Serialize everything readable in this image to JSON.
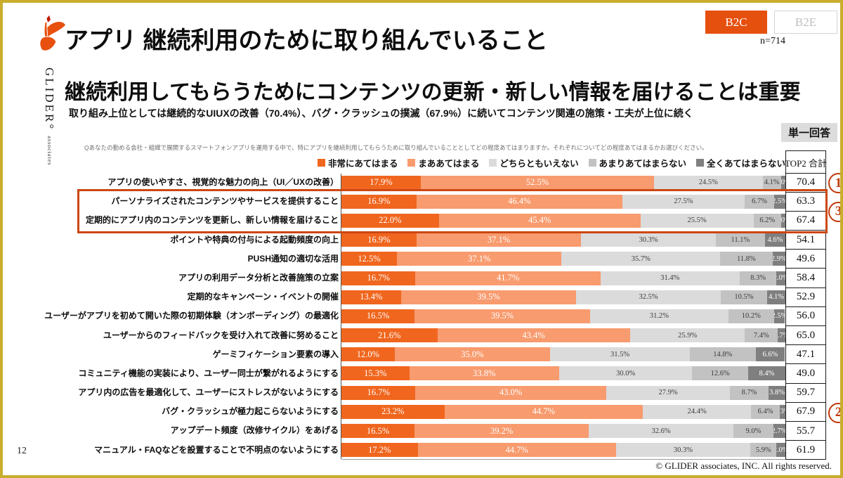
{
  "page": {
    "number": "12",
    "copyright": "© GLIDER associates, INC. All rights reserved."
  },
  "brand": {
    "name": "GLIDER°",
    "sub": "associates"
  },
  "header": {
    "title": "アプリ 継続利用のために取り組んでいること",
    "toggle": {
      "b2c": "B2C",
      "b2e": "B2E"
    },
    "sample_size": "n=714"
  },
  "summary": {
    "headline": "継続利用してもらうためにコンテンツの更新・新しい情報を届けることは重要",
    "note": "取り組み上位としては継続的なUIUXの改善（70.4%）、バグ・クラッシュの撲滅（67.9%）に続いてコンテンツ関連の施策・工夫が上位に続く",
    "answer_type": "単一回答",
    "question": "Qあなたの勤める会社・組織で展開するスマートフォンアプリを運用する中で、特にアプリを継続利用してもらうために取り組んでいることとしてどの程度あてはまりますか。それぞれについてどの程度あてはまるかお選びください。"
  },
  "chart_data": {
    "type": "bar",
    "stacked": true,
    "orientation": "horizontal",
    "unit": "%",
    "xlim": [
      0,
      100
    ],
    "grid": false,
    "legend_position": "top",
    "legend": [
      {
        "label": "非常にあてはまる",
        "color": "#F0661E"
      },
      {
        "label": "まああてはまる",
        "color": "#F89B6E"
      },
      {
        "label": "どちらともいえない",
        "color": "#DBDBDB"
      },
      {
        "label": "あまりあてはまらない",
        "color": "#C2C2C2"
      },
      {
        "label": "全くあてはまらない",
        "color": "#7F7F7F"
      }
    ],
    "top2_header": "TOP2 合計",
    "rows": [
      {
        "label": "アプリの使いやすさ、視覚的な魅力の向上（UI／UXの改善）",
        "values": [
          17.9,
          52.5,
          24.5,
          4.1,
          1.0
        ],
        "top2": "70.4"
      },
      {
        "label": "パーソナライズされたコンテンツやサービスを提供すること",
        "values": [
          16.9,
          46.4,
          27.5,
          6.7,
          2.5
        ],
        "top2": "63.3"
      },
      {
        "label": "定期的にアプリ内のコンテンツを更新し、新しい情報を届けること",
        "values": [
          22.0,
          45.4,
          25.5,
          6.2,
          1.0
        ],
        "top2": "67.4"
      },
      {
        "label": "ポイントや特典の付与による起動頻度の向上",
        "values": [
          16.9,
          37.1,
          30.3,
          11.1,
          4.6
        ],
        "top2": "54.1"
      },
      {
        "label": "PUSH通知の適切な活用",
        "values": [
          12.5,
          37.1,
          35.7,
          11.8,
          2.9
        ],
        "top2": "49.6"
      },
      {
        "label": "アプリの利用データ分析と改善施策の立案",
        "values": [
          16.7,
          41.7,
          31.4,
          8.3,
          2.0
        ],
        "top2": "58.4"
      },
      {
        "label": "定期的なキャンペーン・イベントの開催",
        "values": [
          13.4,
          39.5,
          32.5,
          10.5,
          4.1
        ],
        "top2": "52.9"
      },
      {
        "label": "ユーザーがアプリを初めて開いた際の初期体験（オンボーディング）の最適化",
        "values": [
          16.5,
          39.5,
          31.2,
          10.2,
          2.5
        ],
        "top2": "56.0"
      },
      {
        "label": "ユーザーからのフィードバックを受け入れて改善に努めること",
        "values": [
          21.6,
          43.4,
          25.9,
          7.4,
          1.7
        ],
        "top2": "65.0"
      },
      {
        "label": "ゲーミフィケーション要素の導入",
        "values": [
          12.0,
          35.0,
          31.5,
          14.8,
          6.6
        ],
        "top2": "47.1"
      },
      {
        "label": "コミュニティ機能の実装により、ユーザー同士が繋がれるようにする",
        "values": [
          15.3,
          33.8,
          30.0,
          12.6,
          8.4
        ],
        "top2": "49.0"
      },
      {
        "label": "アプリ内の広告を最適化して、ユーザーにストレスがないようにする",
        "values": [
          16.7,
          43.0,
          27.9,
          8.7,
          3.8
        ],
        "top2": "59.7"
      },
      {
        "label": "バグ・クラッシュが極力起こらないようにする",
        "values": [
          23.2,
          44.7,
          24.4,
          6.4,
          1.3
        ],
        "top2": "67.9"
      },
      {
        "label": "アップデート頻度（改修サイクル）をあげる",
        "values": [
          16.5,
          39.2,
          32.6,
          9.0,
          2.7
        ],
        "top2": "55.7"
      },
      {
        "label": "マニュアル・FAQなどを設置することで不明点のないようにする",
        "values": [
          17.2,
          44.7,
          30.3,
          5.9,
          2.0
        ],
        "top2": "61.9"
      }
    ],
    "annotations": [
      {
        "symbol": "1",
        "row": 0
      },
      {
        "symbol": "3",
        "between_rows": [
          1,
          2
        ]
      },
      {
        "symbol": "2",
        "row": 12
      }
    ],
    "highlight_rows": [
      1,
      2
    ],
    "highlight_color": "#CC4712"
  }
}
